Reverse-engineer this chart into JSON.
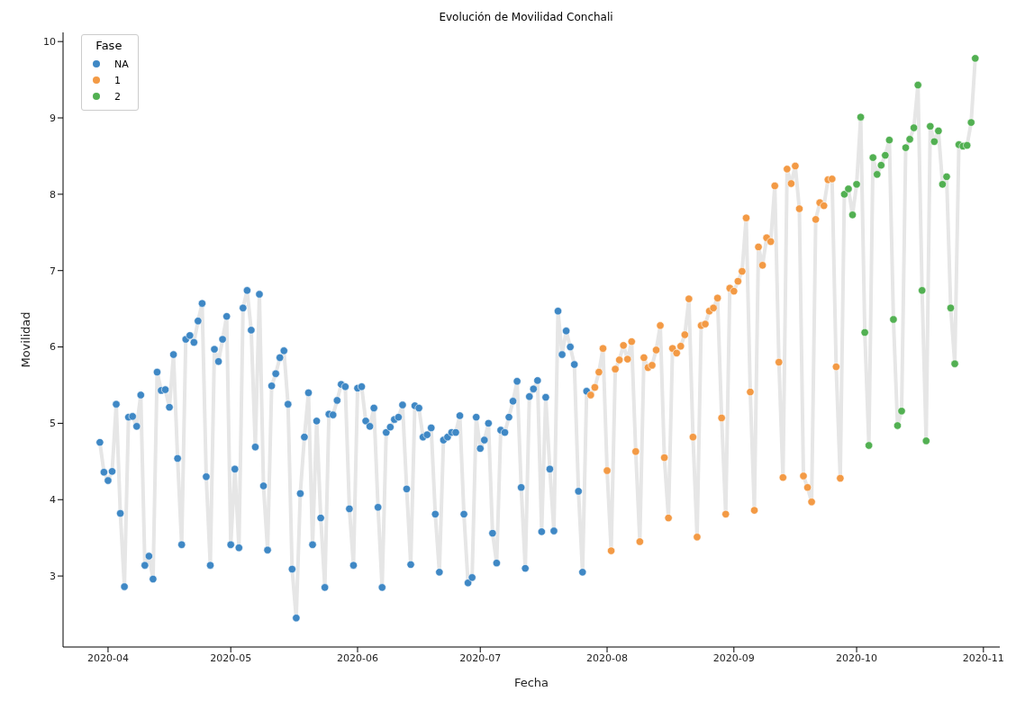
{
  "chart_data": {
    "type": "scatter",
    "title": "Evolución de Movilidad Conchali",
    "xlabel": "Fecha",
    "ylabel": "Movilidad",
    "legend_title": "Fase",
    "legend": "top left",
    "marker": "circle",
    "grid": false,
    "xlim": [
      "2020-03-21",
      "2020-11-05"
    ],
    "xticks": [
      {
        "value": "2020-04-01",
        "label": "2020-04"
      },
      {
        "value": "2020-05-01",
        "label": "2020-05"
      },
      {
        "value": "2020-06-01",
        "label": "2020-06"
      },
      {
        "value": "2020-07-01",
        "label": "2020-07"
      },
      {
        "value": "2020-08-01",
        "label": "2020-08"
      },
      {
        "value": "2020-09-01",
        "label": "2020-09"
      },
      {
        "value": "2020-10-01",
        "label": "2020-10"
      },
      {
        "value": "2020-11-01",
        "label": "2020-11"
      }
    ],
    "ylim": [
      2.07,
      10.12
    ],
    "yticks": [
      3,
      4,
      5,
      6,
      7,
      8,
      9,
      10
    ],
    "x": [
      "2020-03-30",
      "2020-03-31",
      "2020-04-01",
      "2020-04-02",
      "2020-04-03",
      "2020-04-04",
      "2020-04-05",
      "2020-04-06",
      "2020-04-07",
      "2020-04-08",
      "2020-04-09",
      "2020-04-10",
      "2020-04-11",
      "2020-04-12",
      "2020-04-13",
      "2020-04-14",
      "2020-04-15",
      "2020-04-16",
      "2020-04-17",
      "2020-04-18",
      "2020-04-19",
      "2020-04-20",
      "2020-04-21",
      "2020-04-22",
      "2020-04-23",
      "2020-04-24",
      "2020-04-25",
      "2020-04-26",
      "2020-04-27",
      "2020-04-28",
      "2020-04-29",
      "2020-04-30",
      "2020-05-01",
      "2020-05-02",
      "2020-05-03",
      "2020-05-04",
      "2020-05-05",
      "2020-05-06",
      "2020-05-07",
      "2020-05-08",
      "2020-05-09",
      "2020-05-10",
      "2020-05-11",
      "2020-05-12",
      "2020-05-13",
      "2020-05-14",
      "2020-05-15",
      "2020-05-16",
      "2020-05-17",
      "2020-05-18",
      "2020-05-19",
      "2020-05-20",
      "2020-05-21",
      "2020-05-22",
      "2020-05-23",
      "2020-05-24",
      "2020-05-25",
      "2020-05-26",
      "2020-05-27",
      "2020-05-28",
      "2020-05-29",
      "2020-05-30",
      "2020-05-31",
      "2020-06-01",
      "2020-06-02",
      "2020-06-03",
      "2020-06-04",
      "2020-06-05",
      "2020-06-06",
      "2020-06-07",
      "2020-06-08",
      "2020-06-09",
      "2020-06-10",
      "2020-06-11",
      "2020-06-12",
      "2020-06-13",
      "2020-06-14",
      "2020-06-15",
      "2020-06-16",
      "2020-06-17",
      "2020-06-18",
      "2020-06-19",
      "2020-06-20",
      "2020-06-21",
      "2020-06-22",
      "2020-06-23",
      "2020-06-24",
      "2020-06-25",
      "2020-06-26",
      "2020-06-27",
      "2020-06-28",
      "2020-06-29",
      "2020-06-30",
      "2020-07-01",
      "2020-07-02",
      "2020-07-03",
      "2020-07-04",
      "2020-07-05",
      "2020-07-06",
      "2020-07-07",
      "2020-07-08",
      "2020-07-09",
      "2020-07-10",
      "2020-07-11",
      "2020-07-12",
      "2020-07-13",
      "2020-07-14",
      "2020-07-15",
      "2020-07-16",
      "2020-07-17",
      "2020-07-18",
      "2020-07-19",
      "2020-07-20",
      "2020-07-21",
      "2020-07-22",
      "2020-07-23",
      "2020-07-24",
      "2020-07-25",
      "2020-07-26",
      "2020-07-27",
      "2020-07-28",
      "2020-07-29",
      "2020-07-30",
      "2020-07-31",
      "2020-08-01",
      "2020-08-02",
      "2020-08-03",
      "2020-08-04",
      "2020-08-05",
      "2020-08-06",
      "2020-08-07",
      "2020-08-08",
      "2020-08-09",
      "2020-08-10",
      "2020-08-11",
      "2020-08-12",
      "2020-08-13",
      "2020-08-14",
      "2020-08-15",
      "2020-08-16",
      "2020-08-17",
      "2020-08-18",
      "2020-08-19",
      "2020-08-20",
      "2020-08-21",
      "2020-08-22",
      "2020-08-23",
      "2020-08-24",
      "2020-08-25",
      "2020-08-26",
      "2020-08-27",
      "2020-08-28",
      "2020-08-29",
      "2020-08-30",
      "2020-08-31",
      "2020-09-01",
      "2020-09-02",
      "2020-09-03",
      "2020-09-04",
      "2020-09-05",
      "2020-09-06",
      "2020-09-07",
      "2020-09-08",
      "2020-09-09",
      "2020-09-10",
      "2020-09-11",
      "2020-09-12",
      "2020-09-13",
      "2020-09-14",
      "2020-09-15",
      "2020-09-16",
      "2020-09-17",
      "2020-09-18",
      "2020-09-19",
      "2020-09-20",
      "2020-09-21",
      "2020-09-22",
      "2020-09-23",
      "2020-09-24",
      "2020-09-25",
      "2020-09-26",
      "2020-09-27",
      "2020-09-28",
      "2020-09-29",
      "2020-09-30",
      "2020-10-01",
      "2020-10-02",
      "2020-10-03",
      "2020-10-04",
      "2020-10-05",
      "2020-10-06",
      "2020-10-07",
      "2020-10-08",
      "2020-10-09",
      "2020-10-10",
      "2020-10-11",
      "2020-10-12",
      "2020-10-13",
      "2020-10-14",
      "2020-10-15",
      "2020-10-16",
      "2020-10-17",
      "2020-10-18",
      "2020-10-19",
      "2020-10-20",
      "2020-10-21",
      "2020-10-22",
      "2020-10-23",
      "2020-10-24",
      "2020-10-25",
      "2020-10-26",
      "2020-10-27",
      "2020-10-28",
      "2020-10-29",
      "2020-10-30"
    ],
    "series": [
      {
        "type": "line",
        "marker": "none",
        "color": "#e6e6e6",
        "values": [
          4.75,
          4.36,
          4.25,
          4.37,
          5.25,
          3.82,
          2.86,
          5.08,
          5.09,
          4.96,
          5.37,
          3.14,
          3.26,
          2.96,
          5.67,
          5.43,
          5.44,
          5.21,
          5.9,
          4.54,
          3.41,
          6.1,
          6.15,
          6.06,
          6.34,
          6.57,
          4.3,
          3.14,
          5.97,
          5.81,
          6.1,
          6.4,
          3.41,
          4.4,
          3.37,
          6.51,
          6.74,
          6.22,
          4.69,
          6.69,
          4.18,
          3.34,
          5.49,
          5.65,
          5.86,
          5.95,
          5.25,
          3.09,
          2.45,
          4.08,
          4.82,
          5.4,
          3.41,
          5.03,
          3.76,
          2.85,
          5.12,
          5.11,
          5.3,
          5.51,
          5.48,
          3.88,
          3.14,
          5.46,
          5.48,
          5.03,
          4.96,
          5.2,
          3.9,
          2.85,
          4.88,
          4.95,
          5.05,
          5.08,
          5.24,
          4.14,
          3.15,
          5.23,
          5.2,
          4.82,
          4.85,
          4.94,
          3.81,
          3.05,
          4.78,
          4.82,
          4.88,
          4.88,
          5.1,
          3.81,
          2.91,
          2.98,
          5.08,
          4.67,
          4.78,
          5.0,
          3.56,
          3.17,
          4.91,
          4.88,
          5.08,
          5.29,
          5.55,
          4.16,
          3.1,
          5.35,
          5.45,
          5.56,
          3.58,
          5.34,
          4.4,
          3.59,
          6.47,
          5.9,
          6.21,
          6.0,
          5.77,
          4.11,
          3.05,
          5.42,
          5.37,
          5.47,
          5.67,
          5.98,
          4.38,
          3.33,
          5.71,
          5.83,
          6.02,
          5.84,
          6.07,
          4.63,
          3.45,
          5.86,
          5.73,
          5.76,
          5.96,
          6.28,
          4.55,
          3.76,
          5.98,
          5.92,
          6.01,
          6.16,
          6.63,
          4.82,
          3.51,
          6.28,
          6.3,
          6.47,
          6.51,
          6.64,
          5.07,
          3.81,
          6.77,
          6.73,
          6.86,
          6.99,
          7.69,
          5.41,
          3.86,
          7.31,
          7.07,
          7.43,
          7.38,
          8.11,
          5.8,
          4.29,
          8.33,
          8.14,
          8.37,
          7.81,
          4.31,
          4.16,
          3.97,
          7.67,
          7.89,
          7.85,
          8.19,
          8.2,
          5.74,
          4.28,
          8.0,
          8.07,
          7.73,
          8.13,
          9.01,
          6.19,
          4.71,
          8.48,
          8.26,
          8.38,
          8.51,
          8.71,
          6.36,
          4.97,
          5.16,
          8.61,
          8.72,
          8.87,
          9.43,
          6.74,
          4.77,
          8.89,
          8.69,
          8.83,
          8.13,
          8.23,
          6.51,
          5.78,
          8.65,
          8.63,
          8.64,
          8.94,
          9.78
        ]
      },
      {
        "name": "NA",
        "color": "#3f88c5",
        "values": [
          4.75,
          4.36,
          4.25,
          4.37,
          5.25,
          3.82,
          2.86,
          5.08,
          5.09,
          4.96,
          5.37,
          3.14,
          3.26,
          2.96,
          5.67,
          5.43,
          5.44,
          5.21,
          5.9,
          4.54,
          3.41,
          6.1,
          6.15,
          6.06,
          6.34,
          6.57,
          4.3,
          3.14,
          5.97,
          5.81,
          6.1,
          6.4,
          3.41,
          4.4,
          3.37,
          6.51,
          6.74,
          6.22,
          4.69,
          6.69,
          4.18,
          3.34,
          5.49,
          5.65,
          5.86,
          5.95,
          5.25,
          3.09,
          2.45,
          4.08,
          4.82,
          5.4,
          3.41,
          5.03,
          3.76,
          2.85,
          5.12,
          5.11,
          5.3,
          5.51,
          5.48,
          3.88,
          3.14,
          5.46,
          5.48,
          5.03,
          4.96,
          5.2,
          3.9,
          2.85,
          4.88,
          4.95,
          5.05,
          5.08,
          5.24,
          4.14,
          3.15,
          5.23,
          5.2,
          4.82,
          4.85,
          4.94,
          3.81,
          3.05,
          4.78,
          4.82,
          4.88,
          4.88,
          5.1,
          3.81,
          2.91,
          2.98,
          5.08,
          4.67,
          4.78,
          5.0,
          3.56,
          3.17,
          4.91,
          4.88,
          5.08,
          5.29,
          5.55,
          4.16,
          3.1,
          5.35,
          5.45,
          5.56,
          3.58,
          5.34,
          4.4,
          3.59,
          6.47,
          5.9,
          6.21,
          6.0,
          5.77,
          4.11,
          3.05,
          5.42,
          null,
          null,
          null,
          null,
          null,
          null,
          null,
          null,
          null,
          null,
          null,
          null,
          null,
          null,
          null,
          null,
          null,
          null,
          null,
          null,
          null,
          null,
          null,
          null,
          null,
          null,
          null,
          null,
          null,
          null,
          null,
          null,
          null,
          null,
          null,
          null,
          null,
          null,
          null,
          null,
          null,
          null,
          null,
          null,
          null,
          null,
          null,
          null,
          null,
          null,
          null,
          null,
          null,
          null,
          null,
          null,
          null,
          null,
          null,
          null,
          null,
          null,
          null,
          null,
          null,
          null,
          null,
          null,
          null,
          null,
          null,
          null,
          null,
          null,
          null,
          null,
          null,
          null,
          null,
          null,
          null,
          null,
          null,
          null,
          null,
          null,
          null,
          null,
          null,
          null,
          null,
          null,
          null,
          null,
          null
        ]
      },
      {
        "name": "1",
        "color": "#f39a45",
        "values": [
          null,
          null,
          null,
          null,
          null,
          null,
          null,
          null,
          null,
          null,
          null,
          null,
          null,
          null,
          null,
          null,
          null,
          null,
          null,
          null,
          null,
          null,
          null,
          null,
          null,
          null,
          null,
          null,
          null,
          null,
          null,
          null,
          null,
          null,
          null,
          null,
          null,
          null,
          null,
          null,
          null,
          null,
          null,
          null,
          null,
          null,
          null,
          null,
          null,
          null,
          null,
          null,
          null,
          null,
          null,
          null,
          null,
          null,
          null,
          null,
          null,
          null,
          null,
          null,
          null,
          null,
          null,
          null,
          null,
          null,
          null,
          null,
          null,
          null,
          null,
          null,
          null,
          null,
          null,
          null,
          null,
          null,
          null,
          null,
          null,
          null,
          null,
          null,
          null,
          null,
          null,
          null,
          null,
          null,
          null,
          null,
          null,
          null,
          null,
          null,
          null,
          null,
          null,
          null,
          null,
          null,
          null,
          null,
          null,
          null,
          null,
          null,
          null,
          null,
          null,
          null,
          null,
          null,
          null,
          null,
          5.37,
          5.47,
          5.67,
          5.98,
          4.38,
          3.33,
          5.71,
          5.83,
          6.02,
          5.84,
          6.07,
          4.63,
          3.45,
          5.86,
          5.73,
          5.76,
          5.96,
          6.28,
          4.55,
          3.76,
          5.98,
          5.92,
          6.01,
          6.16,
          6.63,
          4.82,
          3.51,
          6.28,
          6.3,
          6.47,
          6.51,
          6.64,
          5.07,
          3.81,
          6.77,
          6.73,
          6.86,
          6.99,
          7.69,
          5.41,
          3.86,
          7.31,
          7.07,
          7.43,
          7.38,
          8.11,
          5.8,
          4.29,
          8.33,
          8.14,
          8.37,
          7.81,
          4.31,
          4.16,
          3.97,
          7.67,
          7.89,
          7.85,
          8.19,
          8.2,
          5.74,
          4.28,
          null,
          null,
          null,
          null,
          null,
          null,
          null,
          null,
          null,
          null,
          null,
          null,
          null,
          null,
          null,
          null,
          null,
          null,
          null,
          null,
          null,
          null,
          null,
          null,
          null,
          null,
          null,
          null,
          null,
          null,
          null,
          null,
          null
        ]
      },
      {
        "name": "2",
        "color": "#52b052",
        "values": [
          null,
          null,
          null,
          null,
          null,
          null,
          null,
          null,
          null,
          null,
          null,
          null,
          null,
          null,
          null,
          null,
          null,
          null,
          null,
          null,
          null,
          null,
          null,
          null,
          null,
          null,
          null,
          null,
          null,
          null,
          null,
          null,
          null,
          null,
          null,
          null,
          null,
          null,
          null,
          null,
          null,
          null,
          null,
          null,
          null,
          null,
          null,
          null,
          null,
          null,
          null,
          null,
          null,
          null,
          null,
          null,
          null,
          null,
          null,
          null,
          null,
          null,
          null,
          null,
          null,
          null,
          null,
          null,
          null,
          null,
          null,
          null,
          null,
          null,
          null,
          null,
          null,
          null,
          null,
          null,
          null,
          null,
          null,
          null,
          null,
          null,
          null,
          null,
          null,
          null,
          null,
          null,
          null,
          null,
          null,
          null,
          null,
          null,
          null,
          null,
          null,
          null,
          null,
          null,
          null,
          null,
          null,
          null,
          null,
          null,
          null,
          null,
          null,
          null,
          null,
          null,
          null,
          null,
          null,
          null,
          null,
          null,
          null,
          null,
          null,
          null,
          null,
          null,
          null,
          null,
          null,
          null,
          null,
          null,
          null,
          null,
          null,
          null,
          null,
          null,
          null,
          null,
          null,
          null,
          null,
          null,
          null,
          null,
          null,
          null,
          null,
          null,
          null,
          null,
          null,
          null,
          null,
          null,
          null,
          null,
          null,
          null,
          null,
          null,
          null,
          null,
          null,
          null,
          null,
          null,
          null,
          null,
          null,
          null,
          null,
          null,
          null,
          null,
          null,
          null,
          null,
          null,
          8.0,
          8.07,
          7.73,
          8.13,
          9.01,
          6.19,
          4.71,
          8.48,
          8.26,
          8.38,
          8.51,
          8.71,
          6.36,
          4.97,
          5.16,
          8.61,
          8.72,
          8.87,
          9.43,
          6.74,
          4.77,
          8.89,
          8.69,
          8.83,
          8.13,
          8.23,
          6.51,
          5.78,
          8.65,
          8.63,
          8.64,
          8.94,
          9.78
        ]
      }
    ]
  }
}
